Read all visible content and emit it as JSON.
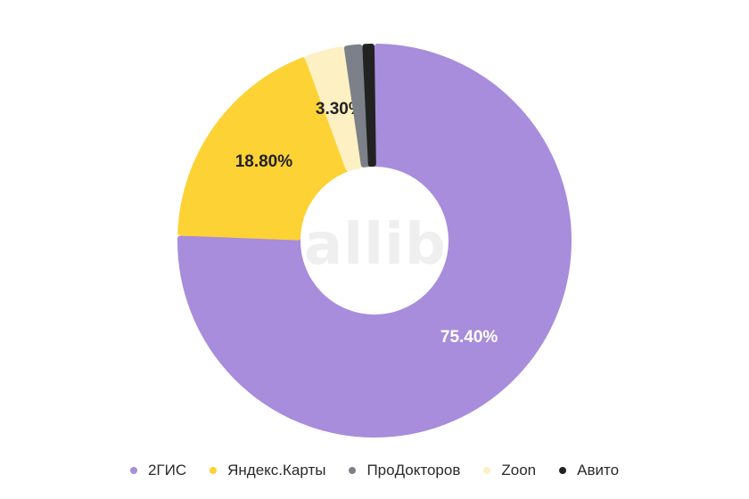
{
  "watermark": "callibri",
  "chart_data": {
    "type": "pie",
    "variant": "donut",
    "series": [
      {
        "name": "2ГИС",
        "value": 75.4,
        "label": "75.40%",
        "color": "#a78ddb",
        "label_color": "#ffffff"
      },
      {
        "name": "Яндекс.Карты",
        "value": 18.8,
        "label": "18.80%",
        "color": "#fdd235",
        "label_color": "#222222"
      },
      {
        "name": "Zoon",
        "value": 3.3,
        "label": "3.30%",
        "color": "#fdf0c2",
        "label_color": "#222222"
      },
      {
        "name": "ПроДокторов",
        "value": 1.5,
        "label": "",
        "color": "#7b8089",
        "label_color": "#ffffff"
      },
      {
        "name": "Авито",
        "value": 1.0,
        "label": "",
        "color": "#222222",
        "label_color": "#ffffff"
      }
    ],
    "legend": {
      "position": "bottom",
      "items": [
        {
          "name": "2ГИС",
          "color": "#a78ddb"
        },
        {
          "name": "Яндекс.Карты",
          "color": "#fdd235"
        },
        {
          "name": "ПроДокторов",
          "color": "#7b8089"
        },
        {
          "name": "Zoon",
          "color": "#fdf0c2"
        },
        {
          "name": "Авито",
          "color": "#222222"
        }
      ]
    }
  }
}
